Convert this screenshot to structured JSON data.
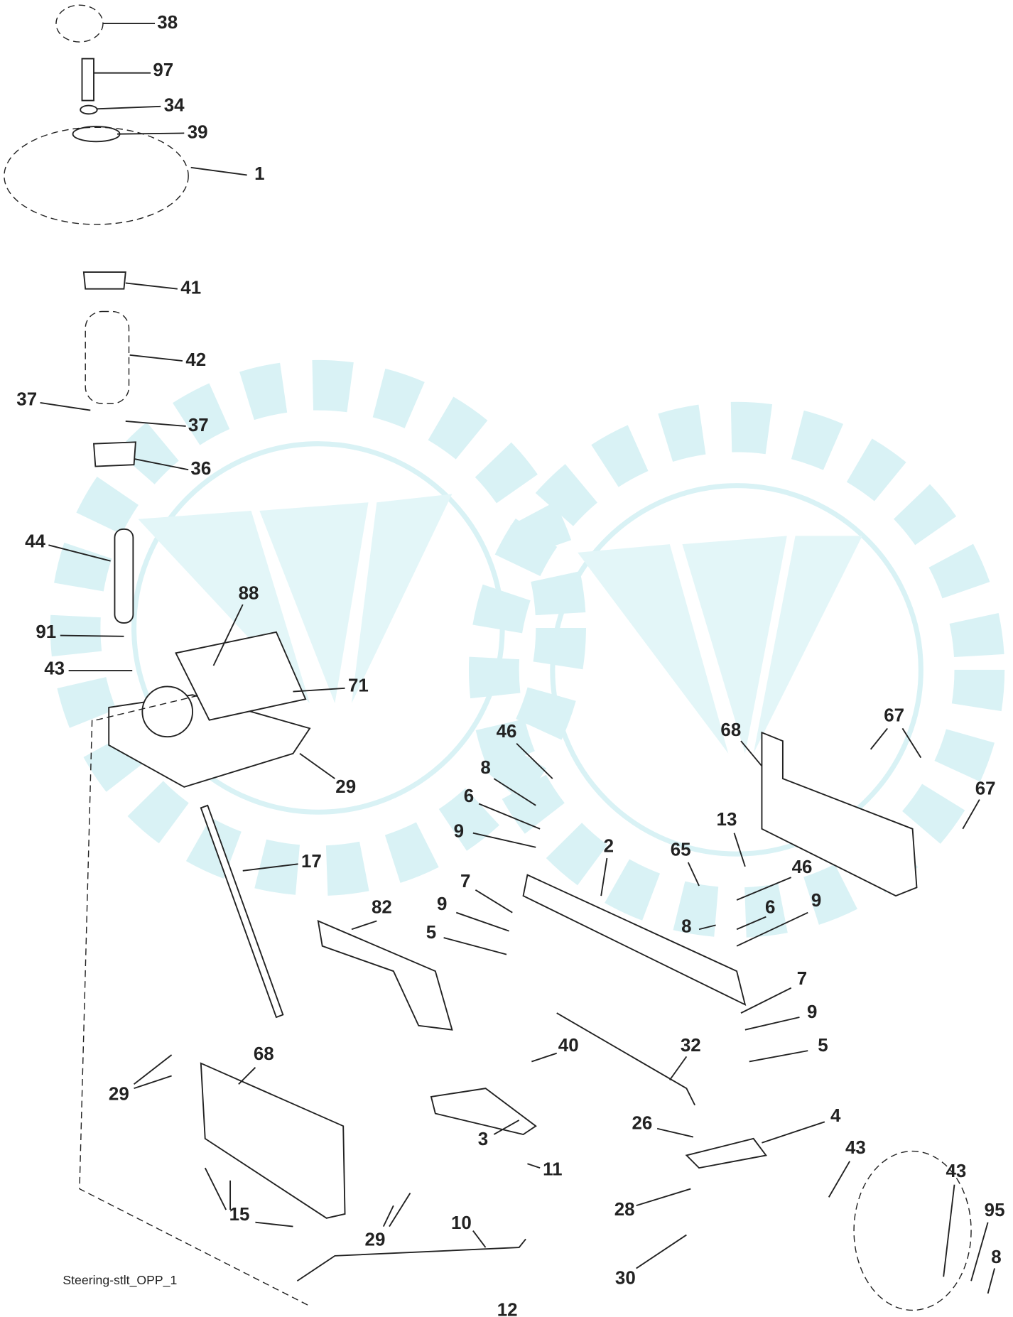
{
  "callouts": [
    "38",
    "97",
    "34",
    "39",
    "1",
    "41",
    "42",
    "37",
    "37",
    "36",
    "44",
    "88",
    "91",
    "43",
    "71",
    "29",
    "17",
    "46",
    "8",
    "6",
    "9",
    "2",
    "7",
    "9",
    "5",
    "82",
    "68",
    "67",
    "67",
    "13",
    "65",
    "46",
    "9",
    "6",
    "8",
    "7",
    "9",
    "5",
    "32",
    "40",
    "29",
    "68",
    "3",
    "11",
    "26",
    "4",
    "43",
    "43",
    "95",
    "8",
    "28",
    "30",
    "15",
    "29",
    "10"
  ],
  "caption": "Steering-stlt_OPP_1",
  "page_number": "12"
}
